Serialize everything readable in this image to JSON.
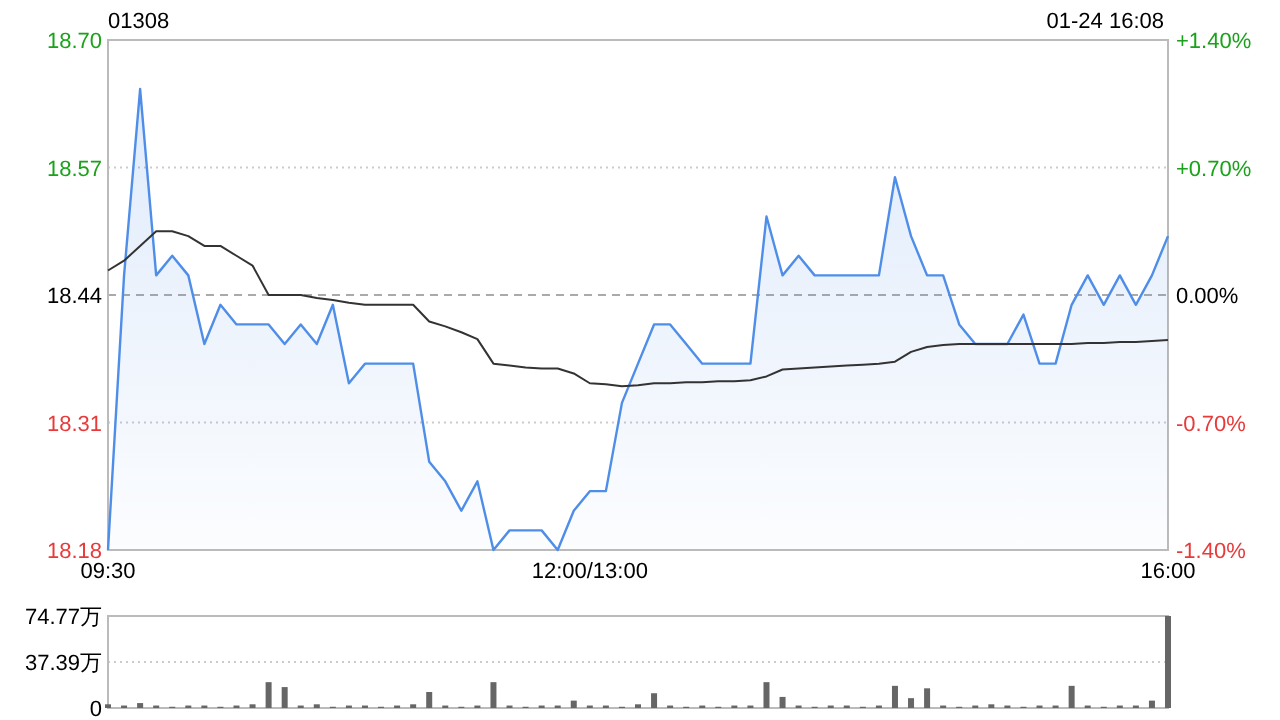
{
  "chart_data": [
    {
      "type": "area",
      "title": "01308",
      "annotations": [
        "01-24 16:08"
      ],
      "categories": [
        "09:30",
        null,
        null,
        null,
        null,
        null,
        null,
        null,
        null,
        null,
        null,
        null,
        null,
        null,
        null,
        null,
        null,
        null,
        null,
        null,
        null,
        null,
        null,
        null,
        null,
        null,
        null,
        null,
        null,
        null,
        "12:00/13:00",
        null,
        null,
        null,
        null,
        null,
        null,
        null,
        null,
        null,
        null,
        null,
        null,
        null,
        null,
        null,
        null,
        null,
        null,
        null,
        null,
        null,
        null,
        null,
        null,
        null,
        null,
        null,
        null,
        null,
        null,
        null,
        null,
        null,
        null,
        null,
        "16:00"
      ],
      "ylim": [
        18.18,
        18.7
      ],
      "yticks": [
        18.18,
        18.31,
        18.44,
        18.57,
        {
          "value": 18.7,
          "label": "18.70"
        }
      ],
      "y2lim": [
        -1.4,
        1.4
      ],
      "y2ticks": [
        {
          "value": -1.4,
          "label": "-1.40%"
        },
        {
          "value": -0.7,
          "label": "-0.70%"
        },
        {
          "value": 0,
          "label": "0.00%"
        },
        {
          "value": 0.7,
          "label": "+0.70%"
        },
        {
          "value": 1.4,
          "label": "+1.40%"
        }
      ],
      "grid": "y",
      "ref_lines": [
        {
          "axis": "y",
          "value": 18.44,
          "color": "#aaaaaa",
          "line_style": "dashed"
        }
      ],
      "series": [
        {
          "type": "area",
          "color": "#4f8ee8",
          "values": [
            18.18,
            18.46,
            18.65,
            18.46,
            18.48,
            18.46,
            18.39,
            18.43,
            18.41,
            18.41,
            18.41,
            18.39,
            18.41,
            18.39,
            18.43,
            18.35,
            18.37,
            18.37,
            18.37,
            18.37,
            18.27,
            18.25,
            18.22,
            18.25,
            18.18,
            18.2,
            18.2,
            18.2,
            18.18,
            18.22,
            18.24,
            18.24,
            18.33,
            18.37,
            18.41,
            18.41,
            18.39,
            18.37,
            18.37,
            18.37,
            18.37,
            18.52,
            18.46,
            18.48,
            18.46,
            18.46,
            18.46,
            18.46,
            18.46,
            18.56,
            18.5,
            18.46,
            18.46,
            18.41,
            18.39,
            18.39,
            18.39,
            18.42,
            18.37,
            18.37,
            18.43,
            18.46,
            18.43,
            18.46,
            18.43,
            18.46,
            18.5
          ]
        },
        {
          "type": "line",
          "color": "#333333",
          "values": [
            18.465,
            18.475,
            18.49,
            18.505,
            18.505,
            18.5,
            18.49,
            18.49,
            18.48,
            18.47,
            18.44,
            18.44,
            18.44,
            18.437,
            18.435,
            18.432,
            18.43,
            18.43,
            18.43,
            18.43,
            18.413,
            18.408,
            18.402,
            18.395,
            18.37,
            18.368,
            18.366,
            18.365,
            18.365,
            18.36,
            18.35,
            18.349,
            18.347,
            18.348,
            18.35,
            18.35,
            18.351,
            18.351,
            18.352,
            18.352,
            18.353,
            18.357,
            18.364,
            18.365,
            18.366,
            18.367,
            18.368,
            18.369,
            18.37,
            18.372,
            18.382,
            18.387,
            18.389,
            18.39,
            18.39,
            18.39,
            18.39,
            18.39,
            18.39,
            18.39,
            18.39,
            18.391,
            18.391,
            18.392,
            18.392,
            18.393,
            18.394
          ]
        }
      ]
    },
    {
      "type": "bar",
      "tick_labels": "y",
      "grid": "y",
      "color": "#666666",
      "categories": [
        null,
        null,
        null,
        null,
        null,
        null,
        null,
        null,
        null,
        null,
        null,
        null,
        null,
        null,
        null,
        null,
        null,
        null,
        null,
        null,
        null,
        null,
        null,
        null,
        null,
        null,
        null,
        null,
        null,
        null,
        null,
        null,
        null,
        null,
        null,
        null,
        null,
        null,
        null,
        null,
        null,
        null,
        null,
        null,
        null,
        null,
        null,
        null,
        null,
        null,
        null,
        null,
        null,
        null,
        null,
        null,
        null,
        null,
        null,
        null,
        null,
        null,
        null,
        null,
        null,
        null,
        null
      ],
      "ylim": [
        0,
        74.77
      ],
      "yticks": [
        {
          "value": 0,
          "label": "0"
        },
        {
          "value": 37.39,
          "label": "37.39万"
        },
        {
          "value": 74.77,
          "label": "74.77万"
        }
      ],
      "values": [
        3,
        2,
        4,
        2,
        1,
        2,
        2,
        1,
        2,
        3,
        21,
        17,
        2,
        3,
        1,
        2,
        2,
        1,
        2,
        3,
        13,
        2,
        1,
        2,
        21,
        2,
        1,
        2,
        2,
        6,
        2,
        2,
        1,
        3,
        12,
        2,
        1,
        2,
        1,
        2,
        2,
        21,
        9,
        2,
        1,
        2,
        2,
        1,
        2,
        18,
        8,
        16,
        2,
        1,
        2,
        3,
        2,
        1,
        2,
        2,
        18,
        2,
        1,
        2,
        2,
        6,
        74.77
      ]
    }
  ]
}
